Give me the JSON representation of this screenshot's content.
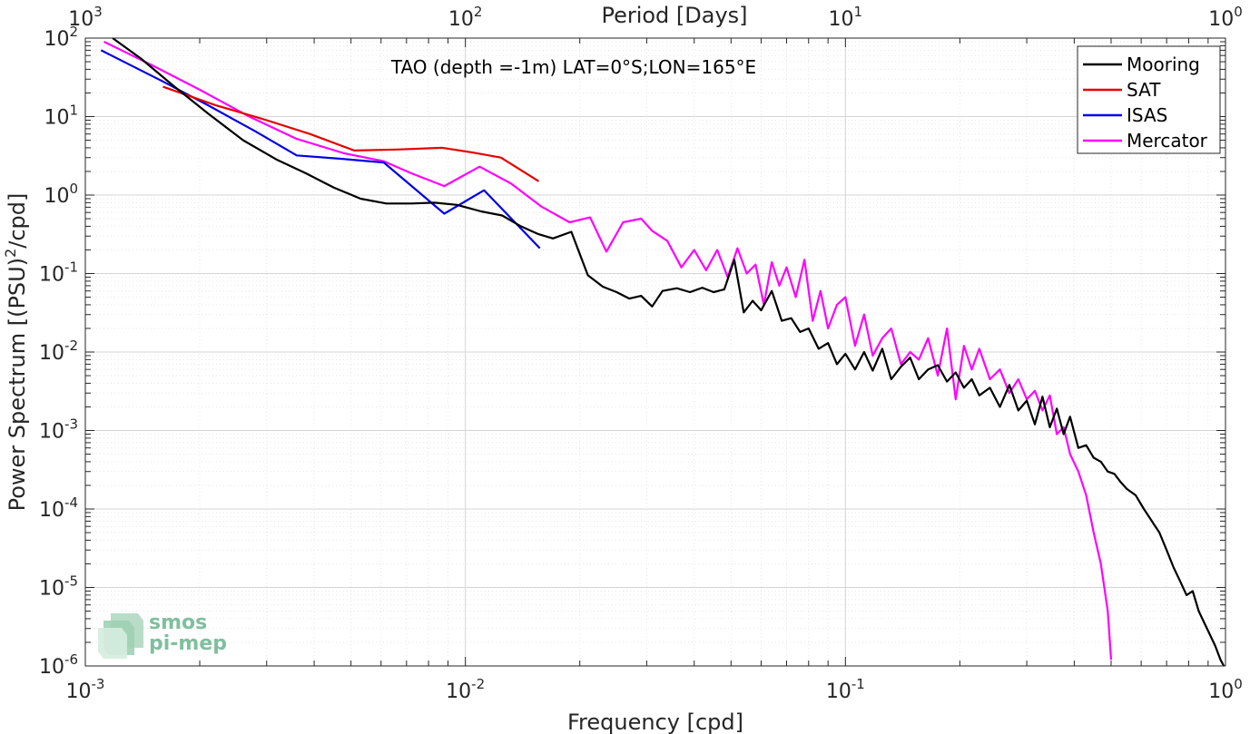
{
  "chart_data": {
    "type": "line",
    "title": "",
    "annotation": "TAO (depth =-1m) LAT=0°S;LON=165°E",
    "xlabel": "Frequency [cpd]",
    "ylabel_main": "Power Spectrum [(PSU)",
    "ylabel_sup": "2",
    "ylabel_tail": "/cpd]",
    "top_xlabel": "Period [Days]",
    "xscale": "log",
    "yscale": "log",
    "xlim": [
      0.001,
      1
    ],
    "ylim": [
      1e-06,
      100
    ],
    "grid": true,
    "legend_position": "top-right",
    "bottom_ticks": [
      {
        "value": 0.001,
        "base": "10",
        "exp": "-3"
      },
      {
        "value": 0.01,
        "base": "10",
        "exp": "-2"
      },
      {
        "value": 0.1,
        "base": "10",
        "exp": "-1"
      },
      {
        "value": 1,
        "base": "10",
        "exp": "0"
      }
    ],
    "top_ticks": [
      {
        "value": 0.001,
        "base": "10",
        "exp": "3"
      },
      {
        "value": 0.01,
        "base": "10",
        "exp": "2"
      },
      {
        "value": 0.1,
        "base": "10",
        "exp": "1"
      },
      {
        "value": 1,
        "base": "10",
        "exp": "0"
      }
    ],
    "y_ticks": [
      {
        "value": 100,
        "base": "10",
        "exp": "2"
      },
      {
        "value": 10,
        "base": "10",
        "exp": "1"
      },
      {
        "value": 1,
        "base": "10",
        "exp": "0"
      },
      {
        "value": 0.1,
        "base": "10",
        "exp": "-1"
      },
      {
        "value": 0.01,
        "base": "10",
        "exp": "-2"
      },
      {
        "value": 0.001,
        "base": "10",
        "exp": "-3"
      },
      {
        "value": 0.0001,
        "base": "10",
        "exp": "-4"
      },
      {
        "value": 1e-05,
        "base": "10",
        "exp": "-5"
      },
      {
        "value": 1e-06,
        "base": "10",
        "exp": "-6"
      }
    ],
    "series": [
      {
        "name": "Mooring",
        "color": "#000000",
        "x": [
          0.00118,
          0.0014,
          0.0017,
          0.0021,
          0.0026,
          0.0032,
          0.0038,
          0.0045,
          0.0053,
          0.0062,
          0.0072,
          0.0083,
          0.0095,
          0.011,
          0.0125,
          0.014,
          0.0155,
          0.017,
          0.019,
          0.021,
          0.023,
          0.025,
          0.027,
          0.029,
          0.031,
          0.033,
          0.036,
          0.039,
          0.042,
          0.045,
          0.048,
          0.051,
          0.054,
          0.057,
          0.06,
          0.064,
          0.068,
          0.072,
          0.076,
          0.08,
          0.085,
          0.09,
          0.095,
          0.1,
          0.106,
          0.112,
          0.118,
          0.125,
          0.132,
          0.14,
          0.148,
          0.156,
          0.165,
          0.175,
          0.185,
          0.195,
          0.205,
          0.215,
          0.225,
          0.24,
          0.255,
          0.27,
          0.285,
          0.3,
          0.315,
          0.33,
          0.345,
          0.36,
          0.375,
          0.39,
          0.41,
          0.43,
          0.45,
          0.47,
          0.49,
          0.51,
          0.53,
          0.55,
          0.58,
          0.61,
          0.64,
          0.67,
          0.7,
          0.73,
          0.76,
          0.79,
          0.82,
          0.85,
          0.88,
          0.91,
          0.94,
          0.97,
          0.99
        ],
        "y": [
          100,
          55,
          25,
          11,
          5,
          2.8,
          1.9,
          1.25,
          0.9,
          0.78,
          0.78,
          0.8,
          0.75,
          0.62,
          0.55,
          0.4,
          0.32,
          0.28,
          0.34,
          0.095,
          0.068,
          0.058,
          0.048,
          0.052,
          0.038,
          0.06,
          0.065,
          0.058,
          0.066,
          0.058,
          0.063,
          0.15,
          0.032,
          0.045,
          0.034,
          0.06,
          0.025,
          0.027,
          0.018,
          0.02,
          0.011,
          0.013,
          0.007,
          0.0095,
          0.006,
          0.01,
          0.0058,
          0.011,
          0.0045,
          0.0065,
          0.0085,
          0.0045,
          0.006,
          0.0068,
          0.0042,
          0.0055,
          0.0035,
          0.0045,
          0.0028,
          0.0035,
          0.002,
          0.0038,
          0.0018,
          0.0024,
          0.0012,
          0.0027,
          0.0011,
          0.0019,
          0.0009,
          0.0015,
          0.0006,
          0.00065,
          0.00045,
          0.0004,
          0.0003,
          0.00028,
          0.00022,
          0.00018,
          0.00015,
          0.0001,
          7e-05,
          5e-05,
          3e-05,
          1.8e-05,
          1.2e-05,
          8e-06,
          9e-06,
          5e-06,
          3.5e-06,
          2.5e-06,
          1.8e-06,
          1.2e-06,
          1e-06
        ]
      },
      {
        "name": "SAT",
        "color": "#e60000",
        "x": [
          0.0016,
          0.0022,
          0.003,
          0.0039,
          0.0051,
          0.0066,
          0.0087,
          0.0104,
          0.0124,
          0.0156
        ],
        "y": [
          24,
          14,
          9,
          6,
          3.7,
          3.8,
          4,
          3.5,
          3,
          1.5
        ]
      },
      {
        "name": "ISAS",
        "color": "#0000e6",
        "x": [
          0.0011,
          0.0016,
          0.0021,
          0.0028,
          0.0036,
          0.0047,
          0.0061,
          0.0088,
          0.0112,
          0.0157
        ],
        "y": [
          70,
          28,
          14,
          6.5,
          3.2,
          2.9,
          2.6,
          0.58,
          1.15,
          0.21
        ]
      },
      {
        "name": "Mercator",
        "color": "#ff00ff",
        "x": [
          0.00112,
          0.0015,
          0.002,
          0.0027,
          0.0036,
          0.0048,
          0.0061,
          0.0072,
          0.0088,
          0.0109,
          0.0132,
          0.0158,
          0.0188,
          0.0213,
          0.0235,
          0.026,
          0.029,
          0.031,
          0.034,
          0.037,
          0.04,
          0.043,
          0.046,
          0.049,
          0.052,
          0.055,
          0.058,
          0.061,
          0.064,
          0.067,
          0.07,
          0.074,
          0.078,
          0.082,
          0.086,
          0.09,
          0.095,
          0.1,
          0.106,
          0.112,
          0.118,
          0.125,
          0.132,
          0.14,
          0.148,
          0.156,
          0.165,
          0.175,
          0.185,
          0.195,
          0.205,
          0.215,
          0.225,
          0.24,
          0.255,
          0.27,
          0.285,
          0.3,
          0.315,
          0.33,
          0.345,
          0.36,
          0.375,
          0.39,
          0.41,
          0.43,
          0.45,
          0.47,
          0.49,
          0.5
        ],
        "y": [
          90,
          45,
          22,
          10,
          5.2,
          3.4,
          2.7,
          1.9,
          1.3,
          2.3,
          1.4,
          0.72,
          0.45,
          0.52,
          0.19,
          0.45,
          0.5,
          0.35,
          0.26,
          0.12,
          0.2,
          0.11,
          0.2,
          0.09,
          0.21,
          0.1,
          0.13,
          0.04,
          0.14,
          0.07,
          0.12,
          0.05,
          0.15,
          0.025,
          0.06,
          0.02,
          0.04,
          0.05,
          0.012,
          0.03,
          0.009,
          0.015,
          0.02,
          0.007,
          0.01,
          0.008,
          0.015,
          0.005,
          0.02,
          0.0025,
          0.012,
          0.006,
          0.011,
          0.0045,
          0.006,
          0.003,
          0.0045,
          0.0025,
          0.0032,
          0.0018,
          0.0028,
          0.0009,
          0.0011,
          0.0005,
          0.0003,
          0.00015,
          5e-05,
          2e-05,
          5e-06,
          1.2e-06
        ]
      }
    ]
  },
  "logo": {
    "line1": "smos",
    "line2": "pi-mep"
  }
}
